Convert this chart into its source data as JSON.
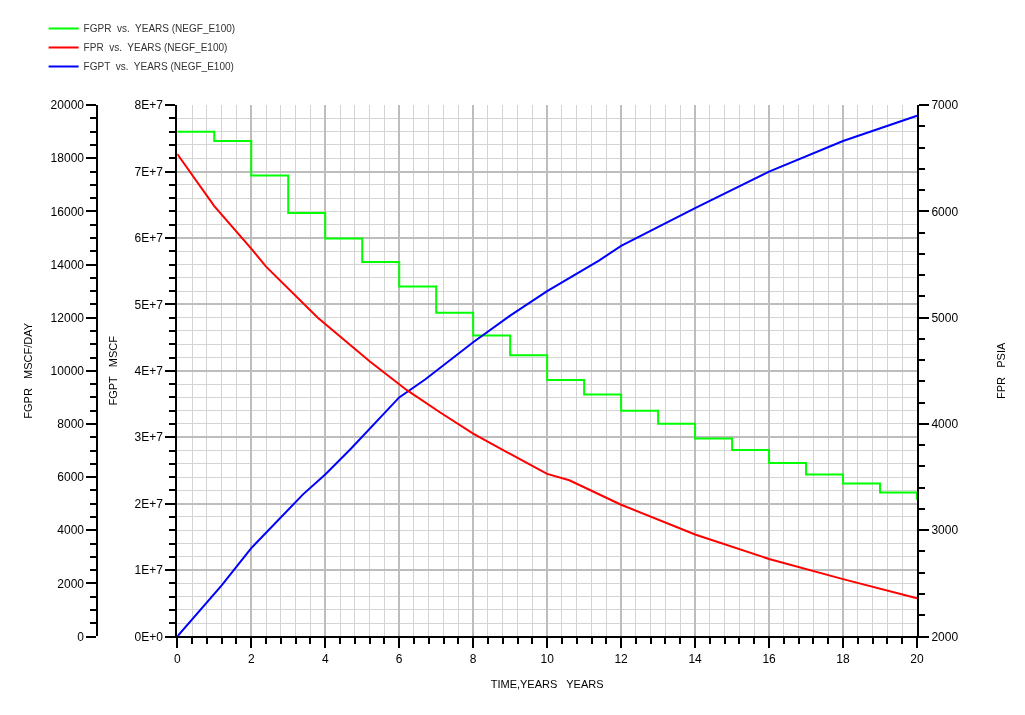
{
  "chart_data": {
    "type": "line",
    "xlabel": "TIME,YEARS   YEARS",
    "ylabel": "FGPR   MSCF/DAY",
    "y2label": "FGPT   MSCF",
    "y3label": "FPR   PSIA",
    "xlim": [
      0,
      20
    ],
    "xticks": [
      0,
      {
        "value": 0.4,
        "label": null
      },
      {
        "value": 0.8,
        "label": null
      },
      {
        "value": 1.2,
        "label": null
      },
      {
        "value": 1.6,
        "label": null
      },
      2,
      {
        "value": 2.4,
        "label": null
      },
      {
        "value": 2.8,
        "label": null
      },
      {
        "value": 3.2,
        "label": null
      },
      {
        "value": 3.6,
        "label": null
      },
      4,
      {
        "value": 4.4,
        "label": null
      },
      {
        "value": 4.8,
        "label": null
      },
      {
        "value": 5.2,
        "label": null
      },
      {
        "value": 5.6,
        "label": null
      },
      6,
      {
        "value": 6.4,
        "label": null
      },
      {
        "value": 6.8,
        "label": null
      },
      {
        "value": 7.2,
        "label": null
      },
      {
        "value": 7.6,
        "label": null
      },
      8,
      {
        "value": 8.4,
        "label": null
      },
      {
        "value": 8.8,
        "label": null
      },
      {
        "value": 9.2,
        "label": null
      },
      {
        "value": 9.6,
        "label": null
      },
      10,
      {
        "value": 10.4,
        "label": null
      },
      {
        "value": 10.8,
        "label": null
      },
      {
        "value": 11.2,
        "label": null
      },
      {
        "value": 11.6,
        "label": null
      },
      12,
      {
        "value": 12.4,
        "label": null
      },
      {
        "value": 12.8,
        "label": null
      },
      {
        "value": 13.2,
        "label": null
      },
      {
        "value": 13.6,
        "label": null
      },
      14,
      {
        "value": 14.4,
        "label": null
      },
      {
        "value": 14.8,
        "label": null
      },
      {
        "value": 15.2,
        "label": null
      },
      {
        "value": 15.6,
        "label": null
      },
      16,
      {
        "value": 16.4,
        "label": null
      },
      {
        "value": 16.8,
        "label": null
      },
      {
        "value": 17.2,
        "label": null
      },
      {
        "value": 17.6,
        "label": null
      },
      18,
      {
        "value": 18.4,
        "label": null
      },
      {
        "value": 18.8,
        "label": null
      },
      {
        "value": 19.2,
        "label": null
      },
      {
        "value": 19.6,
        "label": null
      },
      20
    ],
    "ylim": [
      0,
      20000
    ],
    "yticks": [
      0,
      {
        "value": 500,
        "label": null
      },
      {
        "value": 1000,
        "label": null
      },
      {
        "value": 1500,
        "label": null
      },
      2000,
      {
        "value": 2500,
        "label": null
      },
      {
        "value": 3000,
        "label": null
      },
      {
        "value": 3500,
        "label": null
      },
      4000,
      {
        "value": 4500,
        "label": null
      },
      {
        "value": 5000,
        "label": null
      },
      {
        "value": 5500,
        "label": null
      },
      6000,
      {
        "value": 6500,
        "label": null
      },
      {
        "value": 7000,
        "label": null
      },
      {
        "value": 7500,
        "label": null
      },
      8000,
      {
        "value": 8500,
        "label": null
      },
      {
        "value": 9000,
        "label": null
      },
      {
        "value": 9500,
        "label": null
      },
      10000,
      {
        "value": 10500,
        "label": null
      },
      {
        "value": 11000,
        "label": null
      },
      {
        "value": 11500,
        "label": null
      },
      12000,
      {
        "value": 12500,
        "label": null
      },
      {
        "value": 13000,
        "label": null
      },
      {
        "value": 13500,
        "label": null
      },
      14000,
      {
        "value": 14500,
        "label": null
      },
      {
        "value": 15000,
        "label": null
      },
      {
        "value": 15500,
        "label": null
      },
      16000,
      {
        "value": 16500,
        "label": null
      },
      {
        "value": 17000,
        "label": null
      },
      {
        "value": 17500,
        "label": null
      },
      18000,
      {
        "value": 18500,
        "label": null
      },
      {
        "value": 19000,
        "label": null
      },
      {
        "value": 19500,
        "label": null
      },
      20000
    ],
    "y2lim": [
      0,
      80000000
    ],
    "y2ticks": [
      {
        "value": 0,
        "label": "0E+0"
      },
      {
        "value": 2000000,
        "label": null
      },
      {
        "value": 4000000,
        "label": null
      },
      {
        "value": 6000000,
        "label": null
      },
      {
        "value": 8000000,
        "label": null
      },
      {
        "value": 10000000,
        "label": "1E+7"
      },
      {
        "value": 12000000,
        "label": null
      },
      {
        "value": 14000000,
        "label": null
      },
      {
        "value": 16000000,
        "label": null
      },
      {
        "value": 18000000,
        "label": null
      },
      {
        "value": 20000000,
        "label": "2E+7"
      },
      {
        "value": 22000000,
        "label": null
      },
      {
        "value": 24000000,
        "label": null
      },
      {
        "value": 26000000,
        "label": null
      },
      {
        "value": 28000000,
        "label": null
      },
      {
        "value": 30000000,
        "label": "3E+7"
      },
      {
        "value": 32000000,
        "label": null
      },
      {
        "value": 34000000,
        "label": null
      },
      {
        "value": 36000000,
        "label": null
      },
      {
        "value": 38000000,
        "label": null
      },
      {
        "value": 40000000,
        "label": "4E+7"
      },
      {
        "value": 42000000,
        "label": null
      },
      {
        "value": 44000000,
        "label": null
      },
      {
        "value": 46000000,
        "label": null
      },
      {
        "value": 48000000,
        "label": null
      },
      {
        "value": 50000000,
        "label": "5E+7"
      },
      {
        "value": 52000000,
        "label": null
      },
      {
        "value": 54000000,
        "label": null
      },
      {
        "value": 56000000,
        "label": null
      },
      {
        "value": 58000000,
        "label": null
      },
      {
        "value": 60000000,
        "label": "6E+7"
      },
      {
        "value": 62000000,
        "label": null
      },
      {
        "value": 64000000,
        "label": null
      },
      {
        "value": 66000000,
        "label": null
      },
      {
        "value": 68000000,
        "label": null
      },
      {
        "value": 70000000,
        "label": "7E+7"
      },
      {
        "value": 72000000,
        "label": null
      },
      {
        "value": 74000000,
        "label": null
      },
      {
        "value": 76000000,
        "label": null
      },
      {
        "value": 78000000,
        "label": null
      },
      {
        "value": 80000000,
        "label": "8E+7"
      }
    ],
    "y3lim": [
      2000,
      7000
    ],
    "y3ticks": [
      2000,
      {
        "value": 2200,
        "label": null
      },
      {
        "value": 2400,
        "label": null
      },
      {
        "value": 2600,
        "label": null
      },
      {
        "value": 2800,
        "label": null
      },
      3000,
      {
        "value": 3200,
        "label": null
      },
      {
        "value": 3400,
        "label": null
      },
      {
        "value": 3600,
        "label": null
      },
      {
        "value": 3800,
        "label": null
      },
      4000,
      {
        "value": 4200,
        "label": null
      },
      {
        "value": 4400,
        "label": null
      },
      {
        "value": 4600,
        "label": null
      },
      {
        "value": 4800,
        "label": null
      },
      5000,
      {
        "value": 5200,
        "label": null
      },
      {
        "value": 5400,
        "label": null
      },
      {
        "value": 5600,
        "label": null
      },
      {
        "value": 5800,
        "label": null
      },
      6000,
      {
        "value": 6200,
        "label": null
      },
      {
        "value": 6400,
        "label": null
      },
      {
        "value": 6600,
        "label": null
      },
      {
        "value": 6800,
        "label": null
      },
      7000
    ],
    "grid": true,
    "legend": "top left",
    "series": [
      {
        "name": "FGPR  vs.  YEARS (NEGF_E100)",
        "type": "step",
        "color": "#00ff00",
        "x": [
          0,
          1,
          2,
          3,
          4,
          5,
          6,
          7,
          8,
          9,
          10,
          11,
          12,
          13,
          14,
          15,
          16,
          17,
          18,
          19,
          20
        ],
        "values": [
          19000,
          18650,
          17350,
          15940,
          14980,
          14100,
          13170,
          12190,
          11330,
          10590,
          9650,
          9110,
          8500,
          8010,
          7450,
          7020,
          6530,
          6100,
          5760,
          5420,
          5150
        ]
      },
      {
        "name": "FPR  vs.  YEARS (NEGF_E100)",
        "axis": "y3",
        "color": "#ff0000",
        "x": [
          0,
          1,
          2,
          2.4,
          3.8,
          5.2,
          6.2,
          7.1,
          8,
          9.2,
          10,
          10.6,
          12,
          14,
          16,
          18,
          20
        ],
        "values": [
          6540,
          6050,
          5650,
          5480,
          5000,
          4590,
          4320,
          4110,
          3910,
          3680,
          3530,
          3470,
          3240,
          2960,
          2730,
          2540,
          2360
        ]
      },
      {
        "name": "FGPT  vs.  YEARS (NEGF_E100)",
        "axis": "y2",
        "color": "#0000ff",
        "x": [
          0,
          1.2,
          2,
          3.4,
          4,
          4.7,
          6,
          6.7,
          8,
          9,
          10,
          11.4,
          12,
          14,
          16,
          18,
          20
        ],
        "values": [
          0,
          7700000,
          13300000,
          21400000,
          24400000,
          28300000,
          36000000,
          38700000,
          44300000,
          48300000,
          52000000,
          56600000,
          58800000,
          64500000,
          70000000,
          74600000,
          78400000
        ]
      }
    ]
  }
}
